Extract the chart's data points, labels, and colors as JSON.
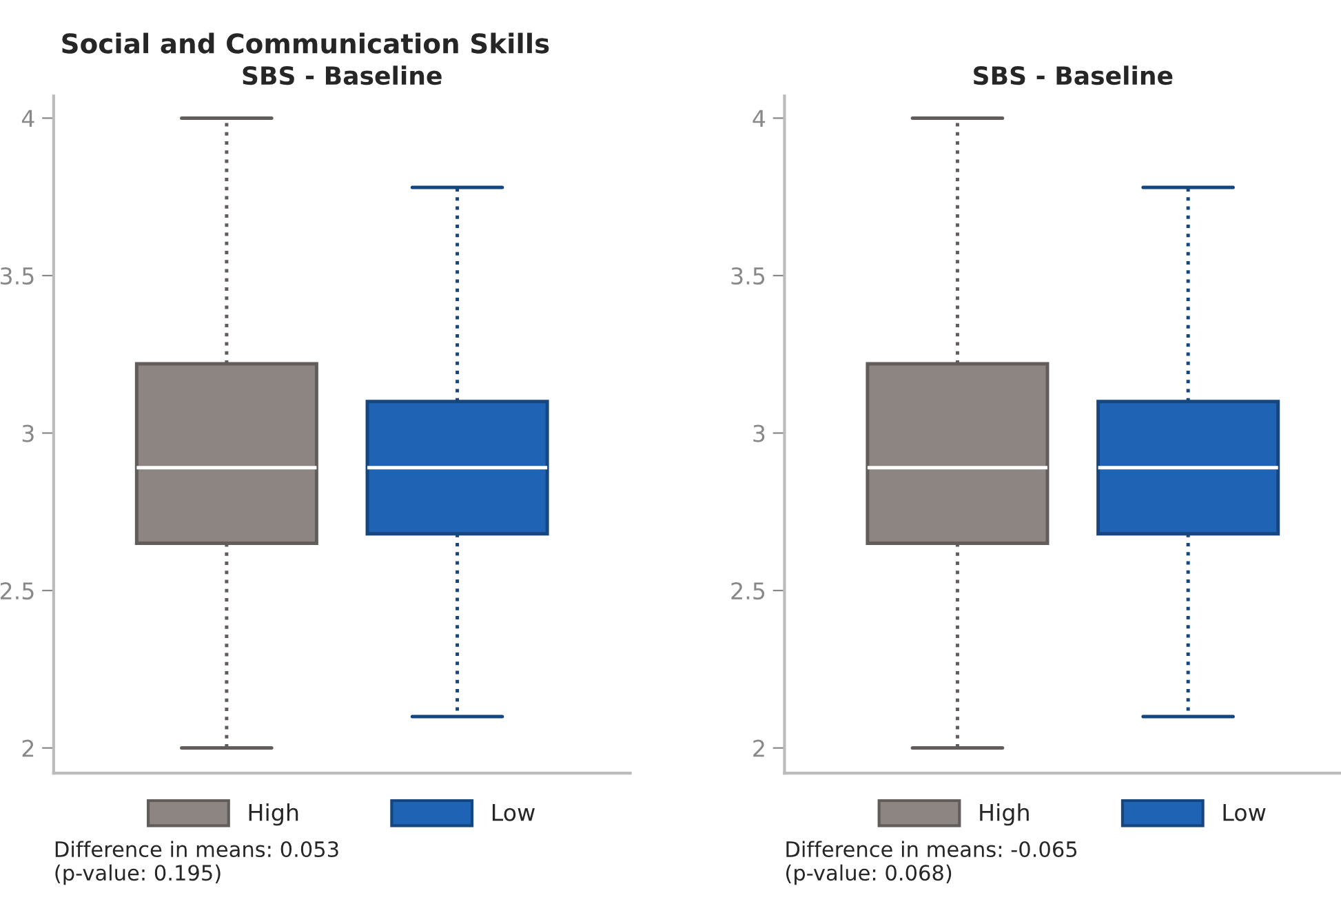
{
  "chart_data": [
    {
      "type": "box",
      "title": "Social and Communication Skills",
      "subtitle": "SBS - Baseline",
      "categories": [
        null
      ],
      "ylim": [
        1.92,
        4.07
      ],
      "yticks": [
        2,
        2.5,
        3,
        3.5,
        4
      ],
      "tick_labels": "y",
      "grid": false,
      "legend": "bottom",
      "line_style": "dotted",
      "series": [
        {
          "name": "High",
          "color": "#8c8582",
          "boxes": [
            {
              "low": 2.0,
              "q1": 2.65,
              "median": 2.89,
              "q3": 3.22,
              "high": 4.0
            }
          ]
        },
        {
          "name": "Low",
          "color": "#1f64b4",
          "boxes": [
            {
              "low": 2.1,
              "q1": 2.68,
              "median": 2.89,
              "q3": 3.1,
              "high": 3.78
            }
          ]
        }
      ],
      "annotations": [
        "Difference in means: 0.053\n(p-value: 0.195)"
      ]
    },
    {
      "type": "box",
      "subtitle": "SBS - Baseline",
      "categories": [
        null
      ],
      "ylim": [
        1.92,
        4.07
      ],
      "yticks": [
        2,
        2.5,
        3,
        3.5,
        4
      ],
      "tick_labels": "y",
      "grid": false,
      "legend": "bottom",
      "line_style": "dotted",
      "series": [
        {
          "name": "High",
          "color": "#8c8582",
          "boxes": [
            {
              "low": 2.0,
              "q1": 2.65,
              "median": 2.89,
              "q3": 3.22,
              "high": 4.0
            }
          ]
        },
        {
          "name": "Low",
          "color": "#1f64b4",
          "boxes": [
            {
              "low": 2.1,
              "q1": 2.68,
              "median": 2.89,
              "q3": 3.1,
              "high": 3.78
            }
          ]
        }
      ],
      "annotations": [
        "Difference in means: -0.065\n(p-value: 0.068)"
      ]
    }
  ]
}
